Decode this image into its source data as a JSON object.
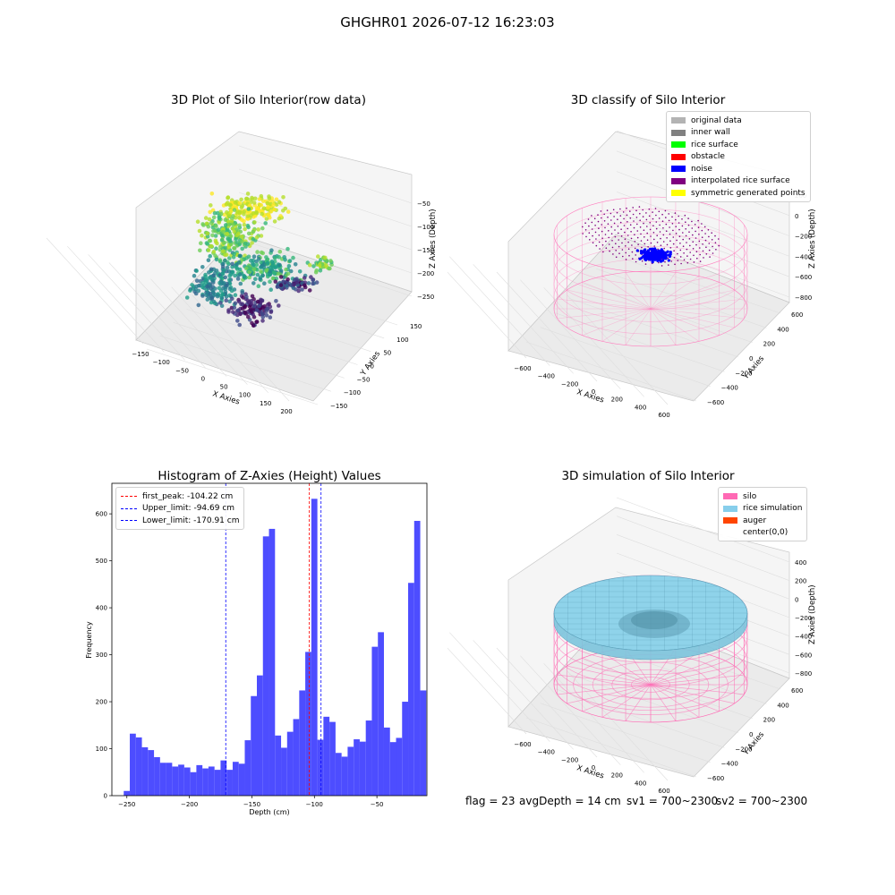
{
  "suptitle": "GHGHR01 2026-07-12 16:23:03",
  "chart_data": [
    {
      "type": "scatter",
      "title": "3D Plot of Silo Interior(row data)",
      "xlabel": "X Axies",
      "ylabel": "Y Axies",
      "zlabel": "Z Axies (Depth)",
      "x_ticks": [
        "−150",
        "−100",
        "−50",
        "0",
        "50",
        "100",
        "150",
        "200"
      ],
      "y_ticks": [
        "−150",
        "−100",
        "−50",
        "0",
        "50",
        "100",
        "150"
      ],
      "z_ticks": [
        "−50",
        "−100",
        "−150",
        "−200",
        "−250"
      ],
      "colormap": "viridis",
      "xlim": [
        -160,
        220
      ],
      "ylim": [
        -160,
        170
      ],
      "zlim": [
        -280,
        -20
      ]
    },
    {
      "type": "scatter",
      "title": "3D classify of Silo Interior",
      "xlabel": "X Axies",
      "ylabel": "Y Axies",
      "zlabel": "Z Axies (Depth)",
      "x_ticks": [
        "−600",
        "−400",
        "−200",
        "0",
        "200",
        "400",
        "600"
      ],
      "y_ticks": [
        "−600",
        "−400",
        "−200",
        "0",
        "200",
        "400",
        "600"
      ],
      "z_ticks": [
        "200",
        "0",
        "−200",
        "−400",
        "−600",
        "−800"
      ],
      "legend_position": "top-right",
      "legend": [
        {
          "label": "original data",
          "color": "#b3b3b3"
        },
        {
          "label": "inner wall",
          "color": "#808080"
        },
        {
          "label": "rice surface",
          "color": "#00ff00"
        },
        {
          "label": "obstacle",
          "color": "#ff0000"
        },
        {
          "label": "noise",
          "color": "#0000ff"
        },
        {
          "label": "interpolated rice surface",
          "color": "#800080"
        },
        {
          "label": "symmetric generated points",
          "color": "#ffff00"
        }
      ]
    },
    {
      "type": "bar",
      "title": "Histogram of Z-Axies (Height) Values",
      "xlabel": "Depth (cm)",
      "ylabel": "Frequency",
      "bar_color": "#4d4dff",
      "xlim": [
        -262,
        -10
      ],
      "ylim": [
        0,
        665
      ],
      "x_ticks": [
        -250,
        -200,
        -150,
        -100,
        -50
      ],
      "y_ticks": [
        0,
        100,
        200,
        300,
        400,
        500,
        600
      ],
      "bin_start": -252.5,
      "bin_width": 4.84,
      "values": [
        10,
        132,
        124,
        103,
        97,
        82,
        70,
        70,
        62,
        66,
        60,
        50,
        65,
        58,
        62,
        55,
        75,
        55,
        72,
        68,
        118,
        212,
        256,
        552,
        568,
        128,
        102,
        136,
        163,
        224,
        306,
        632,
        119,
        168,
        157,
        91,
        83,
        104,
        120,
        115,
        160,
        317,
        348,
        145,
        114,
        123,
        200,
        453,
        585,
        224
      ],
      "legend_position": "top-left",
      "lines": [
        {
          "label": "first_peak: -104.22 cm",
          "x": -104.22,
          "color": "#ff0000"
        },
        {
          "label": "Upper_limit: -94.69 cm",
          "x": -94.69,
          "color": "#0000ff"
        },
        {
          "label": "Lower_limit: -170.91 cm",
          "x": -170.91,
          "color": "#0000ff"
        }
      ]
    },
    {
      "type": "area",
      "title": "3D simulation of Silo Interior",
      "xlabel": "X Axies",
      "ylabel": "Y Axies",
      "zlabel": "Z Axies (Depth)",
      "x_ticks": [
        "−600",
        "−400",
        "−200",
        "0",
        "200",
        "400",
        "600"
      ],
      "y_ticks": [
        "−600",
        "−400",
        "−200",
        "0",
        "200",
        "400",
        "600"
      ],
      "z_ticks": [
        "400",
        "200",
        "0",
        "−200",
        "−400",
        "−600",
        "−800"
      ],
      "legend_position": "top-right",
      "legend": [
        {
          "label": "silo",
          "color": "#ff69b4"
        },
        {
          "label": "rice simulation",
          "color": "#87ceeb"
        },
        {
          "label": "auger",
          "color": "#ff4500"
        },
        {
          "label": "center(0,0)",
          "color": "#ffffff"
        }
      ]
    }
  ],
  "footer": {
    "flag": "flag = 23",
    "avg_depth": "avgDepth = 14 cm",
    "sv1": "sv1 = 700~2300",
    "sv2": "sv2 = 700~2300"
  }
}
